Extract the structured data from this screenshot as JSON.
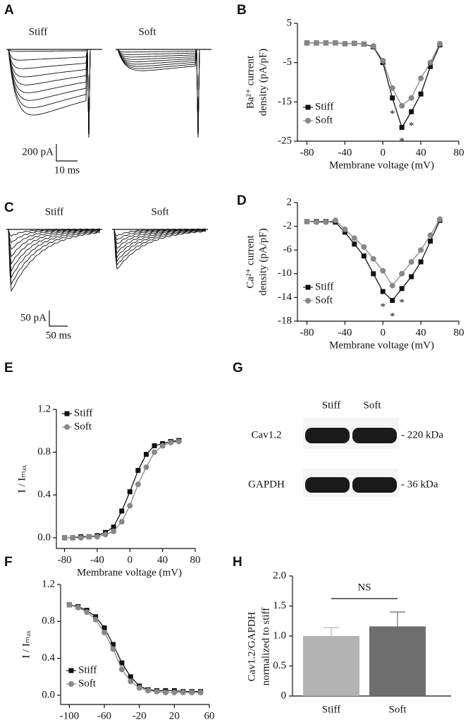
{
  "chart_data": [
    {
      "type": "traces",
      "panel": "A",
      "labels": [
        "Stiff",
        "Soft"
      ],
      "scale_y": "200 pA",
      "scale_x": "10 ms"
    },
    {
      "type": "line",
      "panel": "B",
      "ylabel": [
        "Ba²⁺ current",
        "density (pA/pF)"
      ],
      "xlabel": "Membrane voltage (mV)",
      "x": [
        -80,
        -70,
        -60,
        -50,
        -40,
        -30,
        -20,
        -10,
        0,
        10,
        20,
        30,
        40,
        50,
        60
      ],
      "series": [
        {
          "name": "Stiff",
          "color": "#111111",
          "marker": "square",
          "values": [
            0,
            0,
            0,
            0,
            -0.2,
            -0.1,
            -0.3,
            -1,
            -5,
            -14,
            -21.5,
            -17.5,
            -13,
            -6,
            -0.5
          ]
        },
        {
          "name": "Soft",
          "color": "#888888",
          "marker": "circle",
          "values": [
            0,
            0,
            0,
            0,
            -0.2,
            -0.1,
            -0.3,
            -0.8,
            -4.5,
            -11.5,
            -16,
            -14,
            -9,
            -5,
            -0.2
          ]
        }
      ],
      "xlim": [
        -90,
        80
      ],
      "xticks": [
        -80,
        -40,
        0,
        40,
        80
      ],
      "ylim": [
        -25,
        5
      ],
      "yticks": [
        -25,
        -15,
        -5,
        5
      ],
      "legend": "lower left",
      "annotations": [
        {
          "text": "*",
          "x": 10,
          "y": -17.5
        },
        {
          "text": "*",
          "x": 20,
          "y": -24.5
        },
        {
          "text": "*",
          "x": 30,
          "y": -20.5
        }
      ]
    },
    {
      "type": "traces",
      "panel": "C",
      "labels": [
        "Stiff",
        "Soft"
      ],
      "scale_y": "50 pA",
      "scale_x": "50 ms"
    },
    {
      "type": "line",
      "panel": "D",
      "ylabel": [
        "Ca²⁺ current",
        "density (pA/pF)"
      ],
      "xlabel": "Membrane voltage (mV)",
      "x": [
        -80,
        -70,
        -60,
        -50,
        -40,
        -30,
        -20,
        -10,
        0,
        10,
        20,
        30,
        40,
        50,
        60
      ],
      "series": [
        {
          "name": "Stiff",
          "color": "#111111",
          "marker": "square",
          "values": [
            -1.2,
            -1.2,
            -1.2,
            -1.3,
            -3,
            -5,
            -7,
            -10,
            -13,
            -14.5,
            -12.5,
            -10.5,
            -8,
            -4.5,
            -1
          ]
        },
        {
          "name": "Soft",
          "color": "#888888",
          "marker": "circle",
          "values": [
            -1.2,
            -1.3,
            -1.3,
            -1,
            -2.5,
            -4,
            -5.5,
            -7.5,
            -9.5,
            -12,
            -10,
            -8,
            -6,
            -3.5,
            -0.8
          ]
        }
      ],
      "xlim": [
        -90,
        80
      ],
      "xticks": [
        -80,
        -40,
        0,
        40,
        80
      ],
      "ylim": [
        -18,
        2
      ],
      "yticks": [
        -18,
        -14,
        -10,
        -6,
        -2,
        2
      ],
      "legend": "lower left",
      "annotations": [
        {
          "text": "*",
          "x": 0,
          "y": -15.2
        },
        {
          "text": "*",
          "x": 10,
          "y": -16.8
        },
        {
          "text": "*",
          "x": 20,
          "y": -14.5
        }
      ]
    },
    {
      "type": "line",
      "panel": "E",
      "ylabel": [
        "I / Iₘₐₓ"
      ],
      "xlabel": "Membrane voltage (mV)",
      "x": [
        -80,
        -70,
        -60,
        -50,
        -40,
        -30,
        -20,
        -10,
        0,
        10,
        20,
        30,
        40,
        50,
        60
      ],
      "series": [
        {
          "name": "Stiff",
          "color": "#111111",
          "marker": "square",
          "values": [
            0,
            0,
            0.01,
            0.01,
            0.02,
            0.05,
            0.1,
            0.25,
            0.43,
            0.63,
            0.78,
            0.86,
            0.88,
            0.9,
            0.91
          ]
        },
        {
          "name": "Soft",
          "color": "#888888",
          "marker": "circle",
          "values": [
            0,
            0,
            0,
            0.01,
            0.01,
            0.03,
            0.06,
            0.15,
            0.3,
            0.5,
            0.66,
            0.8,
            0.86,
            0.89,
            0.9
          ]
        }
      ],
      "xlim": [
        -90,
        80
      ],
      "xticks": [
        -80,
        -40,
        0,
        40,
        80
      ],
      "ylim": [
        -0.1,
        1.2
      ],
      "yticks": [
        {
          "value": 0,
          "label": "0.0"
        },
        0.4,
        0.8,
        1.2
      ],
      "legend": "upper left"
    },
    {
      "type": "line",
      "panel": "F",
      "ylabel": [
        "I / Iₘₐₓ"
      ],
      "xlabel": "Membrane voltage (mV)",
      "x": [
        -100,
        -90,
        -80,
        -70,
        -60,
        -50,
        -40,
        -30,
        -20,
        -10,
        0,
        10,
        20,
        30,
        40,
        50
      ],
      "series": [
        {
          "name": "Stiff",
          "color": "#111111",
          "marker": "square",
          "values": [
            0.98,
            0.96,
            0.92,
            0.85,
            0.73,
            0.55,
            0.35,
            0.2,
            0.1,
            0.06,
            0.05,
            0.05,
            0.05,
            0.04,
            0.04,
            0.04
          ]
        },
        {
          "name": "Soft",
          "color": "#888888",
          "marker": "circle",
          "values": [
            0.98,
            0.95,
            0.9,
            0.82,
            0.68,
            0.5,
            0.28,
            0.15,
            0.08,
            0.05,
            0.04,
            0.03,
            0.03,
            0.03,
            0.03,
            0.03
          ]
        }
      ],
      "xlim": [
        -110,
        60
      ],
      "xticks": [
        -100,
        -60,
        -20,
        20,
        60
      ],
      "ylim": [
        -0.1,
        1.2
      ],
      "yticks": [
        {
          "value": 0,
          "label": "0.0"
        },
        0.4,
        0.8,
        1.2
      ],
      "legend": "lower left"
    },
    {
      "type": "blot",
      "panel": "G",
      "lanes": [
        "Stiff",
        "Soft"
      ],
      "bands": [
        "Cav1.2",
        "GAPDH"
      ],
      "sizes": [
        "- 220 kDa",
        "- 36 kDa"
      ]
    },
    {
      "type": "bar",
      "panel": "H",
      "ylabel": [
        "Cav1.2/GAPDH",
        "normalized to stiff"
      ],
      "categories": [
        "Stiff",
        "Soft"
      ],
      "values": [
        1.0,
        1.16
      ],
      "errors": [
        0.14,
        0.24
      ],
      "colors": [
        "#b3b3b3",
        "#6e6e6e"
      ],
      "ylim": [
        0,
        2
      ],
      "yticks": [
        0,
        0.5,
        {
          "value": 1,
          "label": "1.0"
        },
        1.5,
        {
          "value": 2,
          "label": "2.0"
        }
      ],
      "annotation": "NS"
    }
  ]
}
